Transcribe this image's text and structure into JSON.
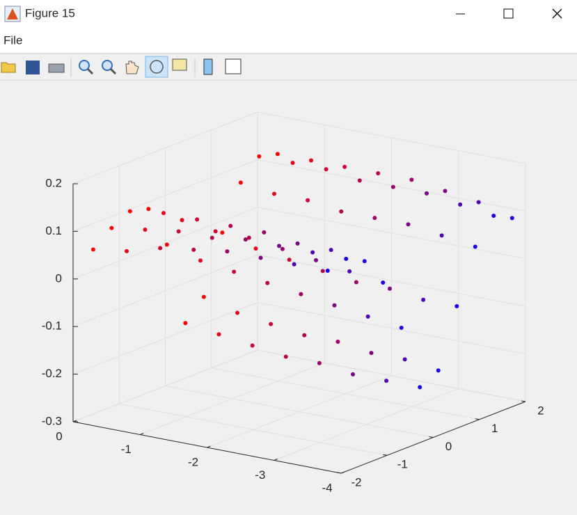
{
  "window": {
    "title": "Figure 15",
    "menu": [
      "File"
    ]
  },
  "chart_data": {
    "type": "scatter3",
    "xlim": [
      -4,
      0
    ],
    "ylim": [
      -2,
      2
    ],
    "zlim": [
      -0.3,
      0.2
    ],
    "xticks": [
      -4,
      -3,
      -2,
      -1,
      0
    ],
    "yticks": [
      -2,
      -1,
      0,
      1,
      2
    ],
    "zticks": [
      -0.3,
      -0.2,
      -0.1,
      0,
      0.1,
      0.2
    ],
    "grid": true,
    "series": [
      {
        "color": "#ff0000",
        "x": [
          -0.3,
          -0.3,
          -0.3,
          -0.3,
          -0.3,
          -0.3,
          -0.3,
          -0.3,
          -0.3,
          -0.3,
          -0.3
        ],
        "y": [
          -2,
          -1.6,
          -1.2,
          -0.8,
          -0.4,
          0,
          0.4,
          0.8,
          1.2,
          1.6,
          2
        ],
        "z": [
          0.07,
          0.1,
          0.12,
          0.11,
          0.02,
          -0.16,
          -0.12,
          0.0,
          0.09,
          0.13,
          0.12
        ]
      },
      {
        "color": "#e6001a",
        "x": [
          -0.8,
          -0.8,
          -0.8,
          -0.8,
          -0.8,
          -0.8,
          -0.8,
          -0.8,
          -0.8,
          -0.8,
          -0.8
        ],
        "y": [
          -2,
          -1.6,
          -1.2,
          -0.8,
          -0.4,
          0,
          0.4,
          0.8,
          1.2,
          1.6,
          2
        ],
        "z": [
          0.08,
          0.11,
          0.13,
          0.1,
          0.0,
          -0.17,
          -0.14,
          -0.02,
          0.08,
          0.13,
          0.12
        ]
      },
      {
        "color": "#cc0033",
        "x": [
          -1.3,
          -1.3,
          -1.3,
          -1.3,
          -1.3,
          -1.3,
          -1.3,
          -1.3,
          -1.3,
          -1.3,
          -1.3
        ],
        "y": [
          -2,
          -1.6,
          -1.2,
          -0.8,
          -0.4,
          0,
          0.4,
          0.8,
          1.2,
          1.6,
          2
        ],
        "z": [
          0.1,
          0.12,
          0.13,
          0.09,
          -0.01,
          -0.18,
          -0.15,
          -0.03,
          0.08,
          0.13,
          0.12
        ]
      },
      {
        "color": "#b3004d",
        "x": [
          -1.8,
          -1.8,
          -1.8,
          -1.8,
          -1.8,
          -1.8,
          -1.8,
          -1.8,
          -1.8,
          -1.8,
          -1.8
        ],
        "y": [
          -2,
          -1.6,
          -1.2,
          -0.8,
          -0.4,
          0,
          0.4,
          0.8,
          1.2,
          1.6,
          2
        ],
        "z": [
          0.11,
          0.12,
          0.13,
          0.09,
          -0.02,
          -0.19,
          -0.16,
          -0.04,
          0.07,
          0.12,
          0.12
        ]
      },
      {
        "color": "#990066",
        "x": [
          -2.3,
          -2.3,
          -2.3,
          -2.3,
          -2.3,
          -2.3,
          -2.3,
          -2.3,
          -2.3,
          -2.3,
          -2.3
        ],
        "y": [
          -2,
          -1.6,
          -1.2,
          -0.8,
          -0.4,
          0,
          0.4,
          0.8,
          1.2,
          1.6,
          2
        ],
        "z": [
          0.12,
          0.13,
          0.13,
          0.08,
          -0.03,
          -0.19,
          -0.16,
          -0.05,
          0.07,
          0.12,
          0.12
        ]
      },
      {
        "color": "#7a0085",
        "x": [
          -2.8,
          -2.8,
          -2.8,
          -2.8,
          -2.8,
          -2.8,
          -2.8,
          -2.8,
          -2.8,
          -2.8,
          -2.8
        ],
        "y": [
          -2,
          -1.6,
          -1.2,
          -0.8,
          -0.4,
          0,
          0.4,
          0.8,
          1.2,
          1.6,
          2
        ],
        "z": [
          0.12,
          0.13,
          0.12,
          0.07,
          -0.04,
          -0.2,
          -0.17,
          -0.05,
          0.07,
          0.12,
          0.11
        ]
      },
      {
        "color": "#4d00b3",
        "x": [
          -3.3,
          -3.3,
          -3.3,
          -3.3,
          -3.3,
          -3.3,
          -3.3,
          -3.3,
          -3.3,
          -3.3,
          -3.3
        ],
        "y": [
          -2,
          -1.6,
          -1.2,
          -0.8,
          -0.4,
          0,
          0.4,
          0.8,
          1.2,
          1.6,
          2
        ],
        "z": [
          0.12,
          0.13,
          0.12,
          0.06,
          -0.05,
          -0.2,
          -0.17,
          -0.06,
          0.06,
          0.11,
          0.1
        ]
      },
      {
        "color": "#1a00e6",
        "x": [
          -3.8,
          -3.8,
          -3.8,
          -3.8,
          -3.8,
          -3.8,
          -3.8,
          -3.8,
          -3.8,
          -3.8,
          -3.8
        ],
        "y": [
          -2,
          -1.6,
          -1.2,
          -0.8,
          -0.4,
          0,
          0.4,
          0.8,
          1.2,
          1.6,
          2
        ],
        "z": [
          0.12,
          0.13,
          0.11,
          0.05,
          -0.06,
          -0.2,
          -0.18,
          -0.06,
          0.05,
          0.1,
          0.08
        ]
      }
    ]
  }
}
